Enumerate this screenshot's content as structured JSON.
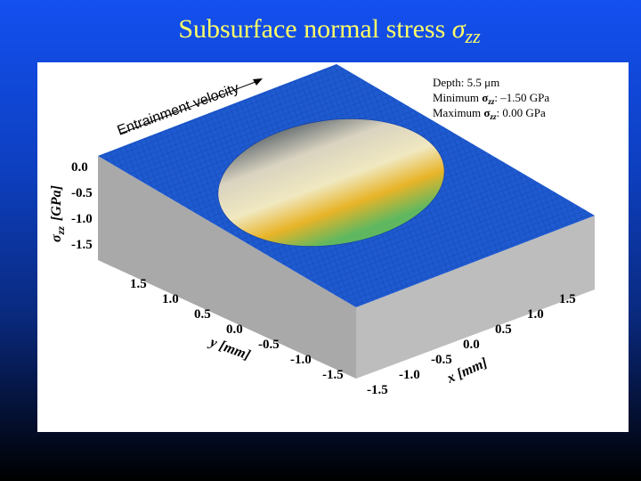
{
  "title": {
    "text": "Subsurface normal stress",
    "symbol": "σ",
    "subscript": "zz"
  },
  "figure": {
    "info": [
      {
        "label": "Depth: 5.5 μm"
      },
      {
        "label": "Minimum ",
        "symbol": "σ",
        "subscript": "zz",
        "value": ": –1.50 GPa"
      },
      {
        "label": "Maximum ",
        "symbol": "σ",
        "subscript": "zz",
        "value": ":  0.00 GPa"
      }
    ],
    "arrow_label": "Entrainment velocity",
    "z_axis": {
      "symbol": "σ",
      "subscript": "zz",
      "unit": "[GPa]",
      "ticks": [
        "0.0",
        "-0.5",
        "-1.0",
        "-1.5"
      ]
    },
    "y_axis": {
      "label": "y [mm]",
      "ticks": [
        "1.5",
        "1.0",
        "0.5",
        "0.0",
        "-0.5",
        "-1.0",
        "-1.5"
      ]
    },
    "x_axis": {
      "label": "x [mm]",
      "ticks": [
        "-1.5",
        "-1.0",
        "-0.5",
        "0.0",
        "0.5",
        "1.0",
        "1.5"
      ]
    }
  }
}
